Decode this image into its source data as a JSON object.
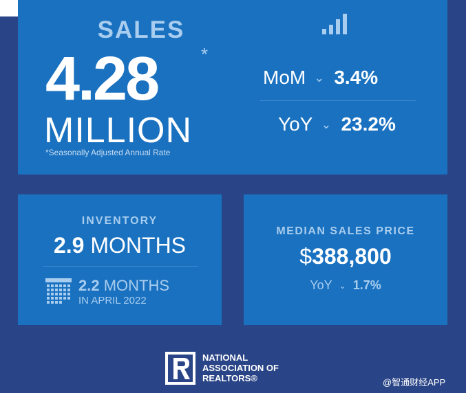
{
  "sales": {
    "label": "SALES",
    "value": "4.28",
    "asterisk": "*",
    "unit": "MILLION",
    "footnote": "*Seasonally Adjusted Annual Rate",
    "icon": "bar-chart-icon",
    "mom": {
      "label": "MoM",
      "direction_icon": "chevron-down-icon",
      "value": "3.4%"
    },
    "yoy": {
      "label": "YoY",
      "direction_icon": "chevron-down-icon",
      "value": "23.2%"
    }
  },
  "inventory": {
    "label": "INVENTORY",
    "value": "2.9",
    "unit": "MONTHS",
    "icon": "calendar-icon",
    "previous": {
      "value": "2.2",
      "unit": "MONTHS",
      "note": "IN APRIL 2022"
    }
  },
  "median_price": {
    "label": "MEDIAN SALES PRICE",
    "currency": "$",
    "value": "388,800",
    "yoy": {
      "label": "YoY",
      "direction_icon": "chevron-down-icon",
      "value": "1.7%"
    }
  },
  "footer": {
    "logo_icon": "realtor-r-logo-icon",
    "org_line1": "NATIONAL",
    "org_line2": "ASSOCIATION OF",
    "org_line3": "REALTORS®",
    "watermark": "@智通财经APP"
  },
  "colors": {
    "background": "#2a4587",
    "panel": "#1971c0",
    "accent_light": "#a9cdee",
    "text": "#ffffff"
  }
}
